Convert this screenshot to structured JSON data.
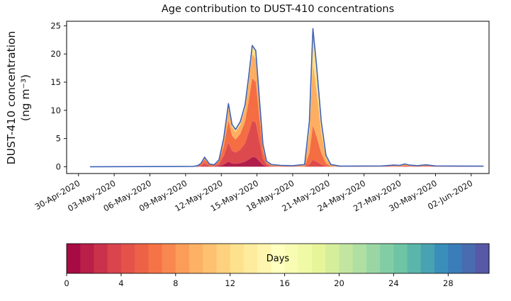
{
  "chart_data": {
    "type": "area",
    "variant": "stacked-area-by-age",
    "title": "Age contribution to DUST-410 concentrations",
    "ylabel": {
      "line1": "DUST-410 concentration",
      "line2": "(ng m⁻³)"
    },
    "x_unit": "days since 30-Apr-2020",
    "grid": false,
    "xlim": [
      -1,
      34.5
    ],
    "ylim": [
      -1.2,
      25.8
    ],
    "y_ticks": [
      0,
      5,
      10,
      15,
      20,
      25
    ],
    "x_tick_days": [
      0,
      3,
      6,
      9,
      12,
      15,
      18,
      21,
      24,
      27,
      30,
      33
    ],
    "x_tick_labels": [
      "30-Apr-2020",
      "03-May-2020",
      "06-May-2020",
      "09-May-2020",
      "12-May-2020",
      "15-May-2020",
      "18-May-2020",
      "21-May-2020",
      "24-May-2020",
      "27-May-2020",
      "30-May-2020",
      "02-Jun-2020"
    ],
    "outline_color": "#4063b8",
    "x": [
      1,
      9.6,
      10,
      10.3,
      10.6,
      11,
      11.4,
      11.8,
      12.2,
      12.6,
      12.9,
      13.2,
      13.6,
      14,
      14.3,
      14.6,
      14.9,
      15.2,
      15.5,
      15.8,
      16.2,
      17,
      18,
      19,
      19.4,
      19.7,
      20,
      20.4,
      20.8,
      21.2,
      22,
      25.5,
      26.5,
      27,
      27.4,
      27.8,
      28.5,
      29.2,
      30,
      34
    ],
    "total": [
      0,
      0.05,
      0.2,
      0.6,
      1.7,
      0.5,
      0.35,
      1.2,
      5,
      11.2,
      7.5,
      6.6,
      8,
      11,
      16,
      21.5,
      20.6,
      12,
      4,
      1,
      0.4,
      0.25,
      0.2,
      0.4,
      8,
      24.5,
      18,
      8,
      2,
      0.4,
      0.1,
      0.15,
      0.3,
      0.25,
      0.5,
      0.3,
      0.2,
      0.35,
      0.15,
      0.1
    ],
    "series": [
      {
        "name": "age-0-3-days",
        "color": "#b11e4b",
        "values": [
          0,
          0,
          0.01,
          0.03,
          0.09,
          0.03,
          0.02,
          0.1,
          0.4,
          0.9,
          0.6,
          0.53,
          0.64,
          0.88,
          1.28,
          1.72,
          1.65,
          0.96,
          0.32,
          0.08,
          0,
          0,
          0,
          0,
          0,
          0,
          0,
          0,
          0,
          0,
          0,
          0,
          0,
          0,
          0,
          0,
          0,
          0,
          0,
          0
        ]
      },
      {
        "name": "age-3-6-days",
        "color": "#dd4a4e",
        "values": [
          0,
          0.02,
          0.06,
          0.18,
          0.51,
          0.15,
          0.11,
          0.36,
          1.5,
          3.36,
          2.25,
          1.98,
          2.4,
          3.3,
          4.8,
          6.45,
          6.18,
          3.6,
          1.2,
          0.3,
          0.04,
          0.03,
          0.02,
          0.02,
          0.4,
          1.23,
          0.9,
          0.4,
          0.1,
          0.02,
          0.01,
          0.02,
          0.03,
          0.03,
          0.05,
          0.03,
          0.02,
          0.04,
          0.02,
          0.01
        ]
      },
      {
        "name": "age-6-9-days",
        "color": "#f46d43",
        "values": [
          0,
          0.02,
          0.08,
          0.24,
          0.68,
          0.2,
          0.14,
          0.42,
          1.75,
          3.92,
          2.63,
          2.31,
          2.8,
          3.85,
          5.6,
          7.53,
          7.21,
          4.2,
          1.4,
          0.35,
          0.16,
          0.1,
          0.08,
          0.1,
          2,
          6.13,
          4.5,
          2,
          0.5,
          0.1,
          0.04,
          0.06,
          0.12,
          0.1,
          0.2,
          0.12,
          0.08,
          0.14,
          0.06,
          0.04
        ]
      },
      {
        "name": "age-9-14-days",
        "color": "#fdae61",
        "values": [
          0,
          0.01,
          0.04,
          0.12,
          0.34,
          0.1,
          0.07,
          0.24,
          1,
          2.24,
          1.5,
          1.32,
          1.6,
          2.2,
          3.2,
          4.3,
          4.12,
          2.4,
          0.8,
          0.2,
          0.16,
          0.1,
          0.08,
          0.18,
          3.6,
          11.02,
          8.1,
          3.6,
          0.9,
          0.18,
          0.04,
          0.06,
          0.12,
          0.1,
          0.2,
          0.12,
          0.08,
          0.14,
          0.06,
          0.04
        ]
      },
      {
        "name": "age-14-20-days",
        "color": "#fee08b",
        "values": [
          0,
          0,
          0.01,
          0.03,
          0.08,
          0.02,
          0.01,
          0.08,
          0.35,
          0.78,
          0.52,
          0.46,
          0.56,
          0.77,
          1.12,
          1.5,
          1.44,
          0.84,
          0.28,
          0.07,
          0.04,
          0.02,
          0.02,
          0.1,
          2,
          6.12,
          4.5,
          2,
          0.5,
          0.1,
          0.01,
          0.01,
          0.03,
          0.02,
          0.05,
          0.03,
          0.02,
          0.03,
          0.01,
          0.01
        ]
      }
    ],
    "colorbar": {
      "label": "Days",
      "vmin": 0,
      "vmax": 31,
      "segments": 31,
      "ticks": [
        0,
        4,
        8,
        12,
        16,
        20,
        24,
        28
      ],
      "colormap": [
        "#9e0142",
        "#d53e4f",
        "#f46d43",
        "#fdae61",
        "#fee08b",
        "#ffffbf",
        "#e6f598",
        "#abdda4",
        "#66c2a5",
        "#3288bd",
        "#5e4fa2"
      ]
    }
  }
}
